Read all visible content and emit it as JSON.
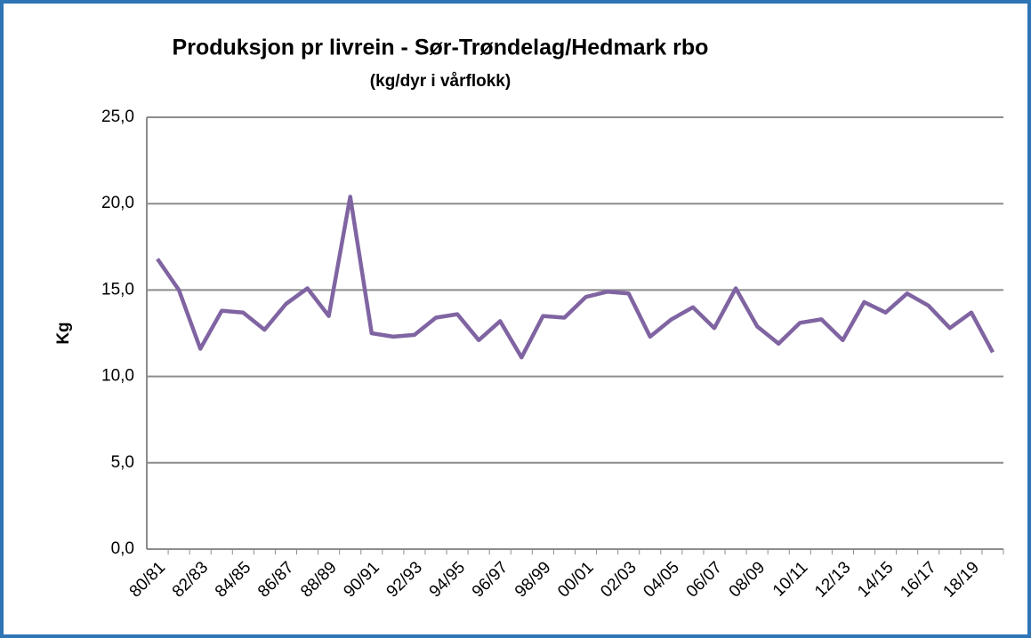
{
  "chart_data": {
    "type": "line",
    "title": "Produksjon pr livrein - Sør-Trøndelag/Hedmark rbo",
    "subtitle": "(kg/dyr i vårflokk)",
    "y_label": "Kg",
    "categories": [
      "80/81",
      null,
      "82/83",
      null,
      "84/85",
      null,
      "86/87",
      null,
      "88/89",
      null,
      "90/91",
      null,
      "92/93",
      null,
      "94/95",
      null,
      "96/97",
      null,
      "98/99",
      null,
      "00/01",
      null,
      "02/03",
      null,
      "04/05",
      null,
      "06/07",
      null,
      "08/09",
      null,
      "10/11",
      null,
      "12/13",
      null,
      "14/15",
      null,
      "16/17",
      null,
      "18/19",
      null
    ],
    "series": [
      {
        "name": "Kg",
        "color": "#8064a2",
        "values": [
          16.8,
          15.0,
          11.6,
          13.8,
          13.7,
          12.7,
          14.2,
          15.1,
          13.5,
          20.4,
          12.5,
          12.3,
          12.4,
          13.4,
          13.6,
          12.1,
          13.2,
          11.1,
          13.5,
          13.4,
          14.6,
          14.9,
          14.8,
          12.3,
          13.3,
          14.0,
          12.8,
          15.1,
          12.9,
          11.9,
          13.1,
          13.3,
          12.1,
          14.3,
          13.7,
          14.8,
          14.1,
          12.8,
          13.7,
          11.4
        ]
      }
    ],
    "ylim": [
      0,
      25
    ],
    "yticks": [
      {
        "value": 0,
        "label": "0,0"
      },
      {
        "value": 5,
        "label": "5,0"
      },
      {
        "value": 10,
        "label": "10,0"
      },
      {
        "value": 15,
        "label": "15,0"
      },
      {
        "value": 20,
        "label": "20,0"
      },
      {
        "value": 25,
        "label": "25,0"
      }
    ],
    "grid": true
  }
}
